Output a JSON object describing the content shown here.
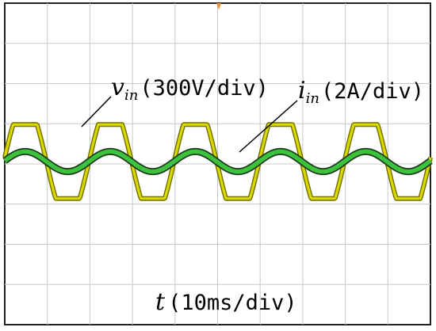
{
  "chart_data": {
    "type": "line",
    "grid": true,
    "x_divisions": 10,
    "y_divisions": 8,
    "x_scale_ms_per_div": 10,
    "time_range_ms": [
      0,
      100
    ],
    "annotations": {
      "vin": {
        "symbol": "v",
        "subscript": "in",
        "scale": "(300V/div)"
      },
      "iin": {
        "symbol": "i",
        "subscript": "in",
        "scale": "(2A/div)"
      },
      "time": {
        "symbol": "t",
        "scale": "(10ms/div)"
      }
    },
    "series": [
      {
        "key": "vin",
        "frequency_hz": 50,
        "amplitude_div": 1.45,
        "offset_div": 0,
        "clipped": true,
        "clip_level_div": 0.92,
        "phase_deg": 4,
        "color": "#d9d900",
        "edge_color": "#6f6f00"
      },
      {
        "key": "iin",
        "frequency_hz": 50,
        "amplitude_div": 0.25,
        "offset_div": 0,
        "phase_deg": 4,
        "color": "#3cc23c",
        "edge_color": "#1d3a1d"
      }
    ],
    "trigger_marker_color": "#f28c28"
  }
}
